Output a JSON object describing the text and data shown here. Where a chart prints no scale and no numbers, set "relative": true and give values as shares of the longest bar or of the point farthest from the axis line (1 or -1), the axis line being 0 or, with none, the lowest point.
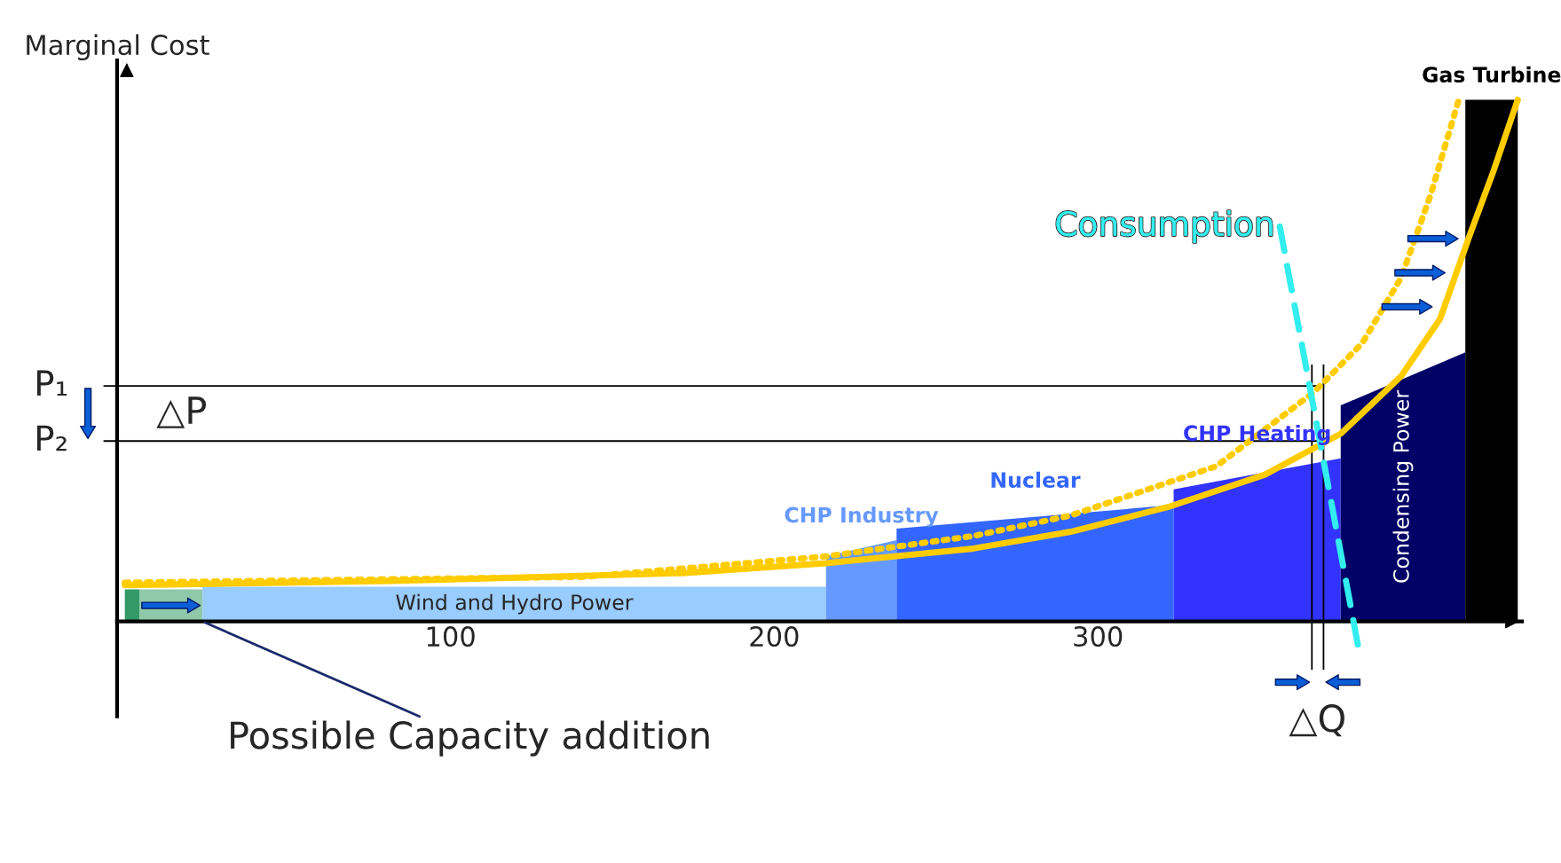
{
  "chart_data": {
    "type": "line",
    "relative": true,
    "ylabel": "Marginal Cost",
    "xlim": [
      -3,
      431
    ],
    "xticks": [
      100,
      200,
      300
    ],
    "grid": false,
    "series": [
      {
        "type": "area",
        "color": "#339966",
        "x": [
          -0.6,
          3.9
        ],
        "values": [
          0.061,
          0.061
        ]
      },
      {
        "type": "area",
        "color": "#8fc9a9",
        "x": [
          3.9,
          23.4
        ],
        "values": [
          0.061,
          0.061
        ]
      },
      {
        "type": "area",
        "name": "Wind and Hydro Power",
        "color": "#99ccff",
        "x": [
          23.4,
          216
        ],
        "values": [
          0.066,
          0.066
        ]
      },
      {
        "type": "area",
        "name": "CHP Industry",
        "color": "#6699ff",
        "x": [
          216,
          237.8
        ],
        "values": [
          0.124,
          0.155
        ]
      },
      {
        "type": "area",
        "name": "Nuclear",
        "color": "#3366ff",
        "x": [
          237.8,
          323.4
        ],
        "values": [
          0.177,
          0.222
        ]
      },
      {
        "type": "area",
        "name": "CHP Heating",
        "color": "#3333ff",
        "x": [
          323.4,
          375
        ],
        "values": [
          0.252,
          0.311
        ]
      },
      {
        "type": "area",
        "name": "Condensing Power",
        "color": "#000066",
        "x": [
          375,
          413.5
        ],
        "values": [
          0.412,
          0.513
        ]
      },
      {
        "type": "area",
        "name": "Gas Turbine",
        "color": "#000000",
        "x": [
          413.5,
          429.7
        ],
        "values": [
          0.995,
          0.995
        ]
      },
      {
        "type": "line",
        "color": "#ffcc00",
        "line_style": "dotted",
        "x": [
          -0.6,
          141.4,
          216,
          261.6,
          291.6,
          336.6,
          366.7,
          381.7,
          393.7,
          402.7,
          411.7
        ],
        "values": [
          0.074,
          0.085,
          0.124,
          0.163,
          0.202,
          0.296,
          0.437,
          0.531,
          0.656,
          0.812,
          1.0
        ]
      },
      {
        "type": "line",
        "color": "#ffcc00",
        "line_style": "solid",
        "x": [
          -0.6,
          81.4,
          171.5,
          216,
          261.6,
          291.6,
          321.6,
          351.6,
          375,
          393.7,
          405.7,
          414.7,
          422.2,
          429.7
        ],
        "values": [
          0.069,
          0.077,
          0.092,
          0.111,
          0.139,
          0.171,
          0.218,
          0.28,
          0.358,
          0.468,
          0.577,
          0.734,
          0.859,
          0.995
        ]
      },
      {
        "type": "line",
        "name": "Consumption",
        "color": "#33eeee",
        "line_style": "dashed",
        "x": [
          356.2,
          380.8
        ],
        "values": [
          0.753,
          -0.061
        ]
      }
    ],
    "ref_lines": [
      {
        "axis": "y",
        "value": 0.449,
        "label": "P₁"
      },
      {
        "axis": "y",
        "value": 0.344,
        "label": "P₂"
      },
      {
        "axis": "x",
        "value": 366.1
      },
      {
        "axis": "x",
        "value": 369.7
      }
    ],
    "annotations": [
      "△P",
      "△Q",
      {
        "text": "Possible Capacity addition",
        "x": 23.4,
        "y": 0
      }
    ]
  }
}
